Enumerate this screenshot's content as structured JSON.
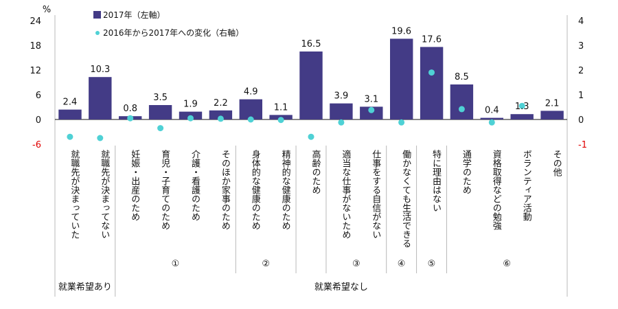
{
  "chart_data": {
    "type": "bar",
    "title": "",
    "categories": [
      "就職先が決まっていた",
      "就職先が決まってない",
      "妊娠・出産のため",
      "育児・子育てのため",
      "介護・看護のため",
      "そのほか家事のため",
      "身体的な健康のため",
      "精神的な健康のため",
      "高齢のため",
      "適当な仕事がないため",
      "仕事をする自信がない",
      "働かなくても生活できる",
      "特に理由はない",
      "通学のため",
      "資格取得などの勉強",
      "ボランティア活動",
      "その他"
    ],
    "series": [
      {
        "name": "2017年（左軸）",
        "type": "bar",
        "axis": "left",
        "color": "#433b86",
        "values": [
          2.4,
          10.3,
          0.8,
          3.5,
          1.9,
          2.2,
          4.9,
          1.1,
          16.5,
          3.9,
          3.1,
          19.6,
          17.6,
          8.5,
          0.4,
          1.3,
          2.1
        ],
        "labels": [
          "2.4",
          "10.3",
          "0.8",
          "3.5",
          "1.9",
          "2.2",
          "4.9",
          "1.1",
          "16.5",
          "3.9",
          "3.1",
          "19.6",
          "17.6",
          "8.5",
          "0.4",
          "1.3",
          "2.1"
        ]
      },
      {
        "name": "2016年から2017年への変化（右軸）",
        "type": "scatter",
        "axis": "right",
        "color": "#4fd1d5",
        "values": [
          -0.7,
          -0.75,
          0.05,
          -0.35,
          0.05,
          0.03,
          0.0,
          -0.02,
          -0.7,
          -0.12,
          0.38,
          -0.12,
          1.9,
          0.42,
          -0.12,
          0.55,
          null
        ]
      }
    ],
    "y_left": {
      "unit": "%",
      "min": -6,
      "max": 24,
      "ticks": [
        "24",
        "18",
        "12",
        "6",
        "0",
        "-6"
      ]
    },
    "y_right": {
      "min": -1,
      "max": 4,
      "ticks": [
        "4",
        "3",
        "2",
        "1",
        "0",
        "-1"
      ]
    },
    "groups_numbered": [
      {
        "label": "①",
        "from": 2,
        "to": 5
      },
      {
        "label": "②",
        "from": 6,
        "to": 7
      },
      {
        "label": "③",
        "from": 9,
        "to": 10
      },
      {
        "label": "④",
        "from": 11,
        "to": 11
      },
      {
        "label": "⑤",
        "from": 12,
        "to": 12
      },
      {
        "label": "⑥",
        "from": 13,
        "to": 16
      }
    ],
    "groups_top": [
      {
        "label": "就業希望あり",
        "from": 0,
        "to": 1
      },
      {
        "label": "就業希望なし",
        "from": 2,
        "to": 16
      }
    ],
    "legend_position": "top-left",
    "grid": false,
    "colors": {
      "negative_tick": "#e00000"
    }
  }
}
